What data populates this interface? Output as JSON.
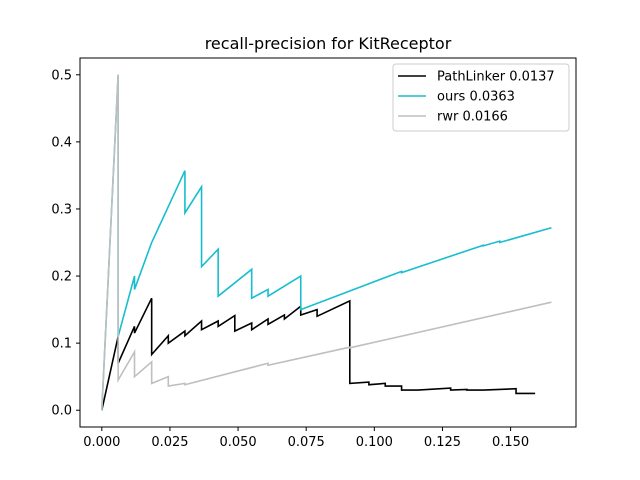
{
  "chart_data": {
    "type": "line",
    "title": "recall-precision for KitReceptor",
    "xlabel": "",
    "ylabel": "",
    "xlim": [
      -0.008,
      0.174
    ],
    "ylim": [
      -0.025,
      0.525
    ],
    "x_ticks": [
      0.0,
      0.025,
      0.05,
      0.075,
      0.1,
      0.125,
      0.15
    ],
    "x_tick_labels": [
      "0.000",
      "0.025",
      "0.050",
      "0.075",
      "0.100",
      "0.125",
      "0.150"
    ],
    "y_ticks": [
      0.0,
      0.1,
      0.2,
      0.3,
      0.4,
      0.5
    ],
    "y_tick_labels": [
      "0.0",
      "0.1",
      "0.2",
      "0.3",
      "0.4",
      "0.5"
    ],
    "grid": false,
    "legend_position": "top-right",
    "series": [
      {
        "name": "PathLinker 0.0137",
        "color": "#000000",
        "points": [
          [
            0.0,
            0.0
          ],
          [
            0.006,
            0.11
          ],
          [
            0.006,
            0.07
          ],
          [
            0.012,
            0.125
          ],
          [
            0.012,
            0.115
          ],
          [
            0.0183,
            0.167
          ],
          [
            0.0183,
            0.083
          ],
          [
            0.0244,
            0.111
          ],
          [
            0.0244,
            0.1
          ],
          [
            0.0305,
            0.118
          ],
          [
            0.0305,
            0.111
          ],
          [
            0.0366,
            0.133
          ],
          [
            0.0366,
            0.12
          ],
          [
            0.0427,
            0.133
          ],
          [
            0.0427,
            0.125
          ],
          [
            0.0488,
            0.141
          ],
          [
            0.0488,
            0.118
          ],
          [
            0.055,
            0.13
          ],
          [
            0.055,
            0.12
          ],
          [
            0.061,
            0.136
          ],
          [
            0.061,
            0.128
          ],
          [
            0.067,
            0.142
          ],
          [
            0.067,
            0.136
          ],
          [
            0.073,
            0.155
          ],
          [
            0.073,
            0.142
          ],
          [
            0.079,
            0.15
          ],
          [
            0.079,
            0.14
          ],
          [
            0.091,
            0.163
          ],
          [
            0.091,
            0.04
          ],
          [
            0.098,
            0.042
          ],
          [
            0.098,
            0.038
          ],
          [
            0.104,
            0.04
          ],
          [
            0.104,
            0.036
          ],
          [
            0.11,
            0.036
          ],
          [
            0.11,
            0.03
          ],
          [
            0.116,
            0.03
          ],
          [
            0.128,
            0.033
          ],
          [
            0.128,
            0.03
          ],
          [
            0.134,
            0.031
          ],
          [
            0.134,
            0.03
          ],
          [
            0.14,
            0.03
          ],
          [
            0.152,
            0.032
          ],
          [
            0.152,
            0.025
          ],
          [
            0.159,
            0.025
          ]
        ]
      },
      {
        "name": "ours 0.0363",
        "color": "#17becf",
        "points": [
          [
            0.0,
            0.0
          ],
          [
            0.006,
            0.5
          ],
          [
            0.006,
            0.11
          ],
          [
            0.012,
            0.2
          ],
          [
            0.012,
            0.18
          ],
          [
            0.0183,
            0.25
          ],
          [
            0.0305,
            0.357
          ],
          [
            0.0305,
            0.294
          ],
          [
            0.0366,
            0.333
          ],
          [
            0.0366,
            0.214
          ],
          [
            0.0427,
            0.24
          ],
          [
            0.0427,
            0.17
          ],
          [
            0.055,
            0.21
          ],
          [
            0.055,
            0.167
          ],
          [
            0.061,
            0.18
          ],
          [
            0.061,
            0.17
          ],
          [
            0.073,
            0.2
          ],
          [
            0.073,
            0.15
          ],
          [
            0.11,
            0.207
          ],
          [
            0.11,
            0.205
          ],
          [
            0.14,
            0.246
          ],
          [
            0.14,
            0.245
          ],
          [
            0.146,
            0.252
          ],
          [
            0.146,
            0.25
          ],
          [
            0.165,
            0.272
          ]
        ]
      },
      {
        "name": "rwr 0.0166",
        "color": "#bfbfbf",
        "points": [
          [
            0.0,
            0.0
          ],
          [
            0.006,
            0.5
          ],
          [
            0.006,
            0.045
          ],
          [
            0.012,
            0.087
          ],
          [
            0.012,
            0.05
          ],
          [
            0.0183,
            0.072
          ],
          [
            0.0183,
            0.04
          ],
          [
            0.0244,
            0.05
          ],
          [
            0.0244,
            0.036
          ],
          [
            0.0305,
            0.04
          ],
          [
            0.0305,
            0.038
          ],
          [
            0.061,
            0.07
          ],
          [
            0.061,
            0.067
          ],
          [
            0.091,
            0.094
          ],
          [
            0.091,
            0.093
          ],
          [
            0.165,
            0.161
          ]
        ]
      }
    ]
  }
}
